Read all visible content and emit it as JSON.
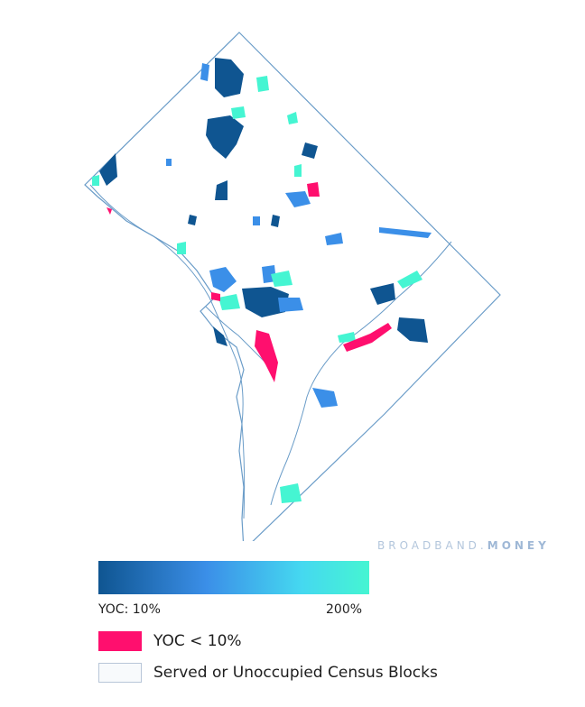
{
  "map": {
    "region_outline_color": "#6a9cc8",
    "colors": {
      "low": "#0f5591",
      "mid": "#3b8fe8",
      "high": "#45f5d2",
      "below_threshold": "#ff0f6e",
      "served": "#f8fafc"
    }
  },
  "watermark": {
    "brand": "BROADBAND",
    "dot": ".",
    "suffix": "MONEY"
  },
  "legend": {
    "gradient_min_label": "YOC: 10%",
    "gradient_max_label": "200%",
    "pink_label": "YOC < 10%",
    "served_label": "Served or Unoccupied Census Blocks"
  }
}
